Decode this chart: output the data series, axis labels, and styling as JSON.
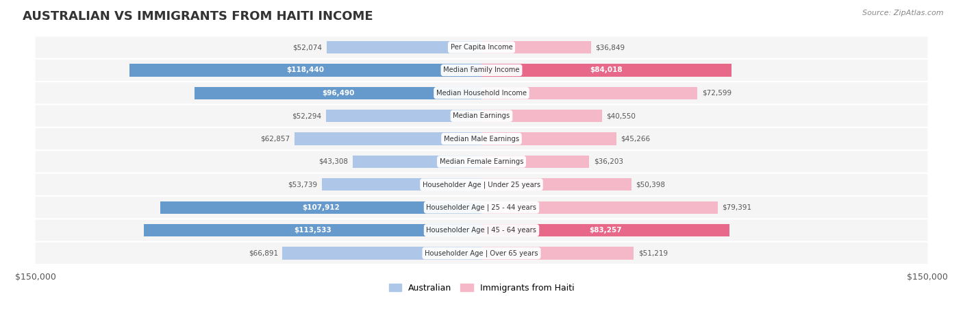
{
  "title": "AUSTRALIAN VS IMMIGRANTS FROM HAITI INCOME",
  "source": "Source: ZipAtlas.com",
  "categories": [
    "Per Capita Income",
    "Median Family Income",
    "Median Household Income",
    "Median Earnings",
    "Median Male Earnings",
    "Median Female Earnings",
    "Householder Age | Under 25 years",
    "Householder Age | 25 - 44 years",
    "Householder Age | 45 - 64 years",
    "Householder Age | Over 65 years"
  ],
  "australian_values": [
    52074,
    118440,
    96490,
    52294,
    62857,
    43308,
    53739,
    107912,
    113533,
    66891
  ],
  "haiti_values": [
    36849,
    84018,
    72599,
    40550,
    45266,
    36203,
    50398,
    79391,
    83257,
    51219
  ],
  "max_value": 150000,
  "australian_color_light": "#aec6e8",
  "australian_color_dark": "#6699cc",
  "haiti_color_light": "#f4b8c8",
  "haiti_color_dark": "#e8688a",
  "label_threshold": 80000,
  "background_color": "#ffffff",
  "row_bg_color": "#f5f5f5",
  "australian_label_values": [
    "$52,074",
    "$118,440",
    "$96,490",
    "$52,294",
    "$62,857",
    "$43,308",
    "$53,739",
    "$107,912",
    "$113,533",
    "$66,891"
  ],
  "haiti_label_values": [
    "$36,849",
    "$84,018",
    "$72,599",
    "$40,550",
    "$45,266",
    "$36,203",
    "$50,398",
    "$79,391",
    "$83,257",
    "$51,219"
  ]
}
